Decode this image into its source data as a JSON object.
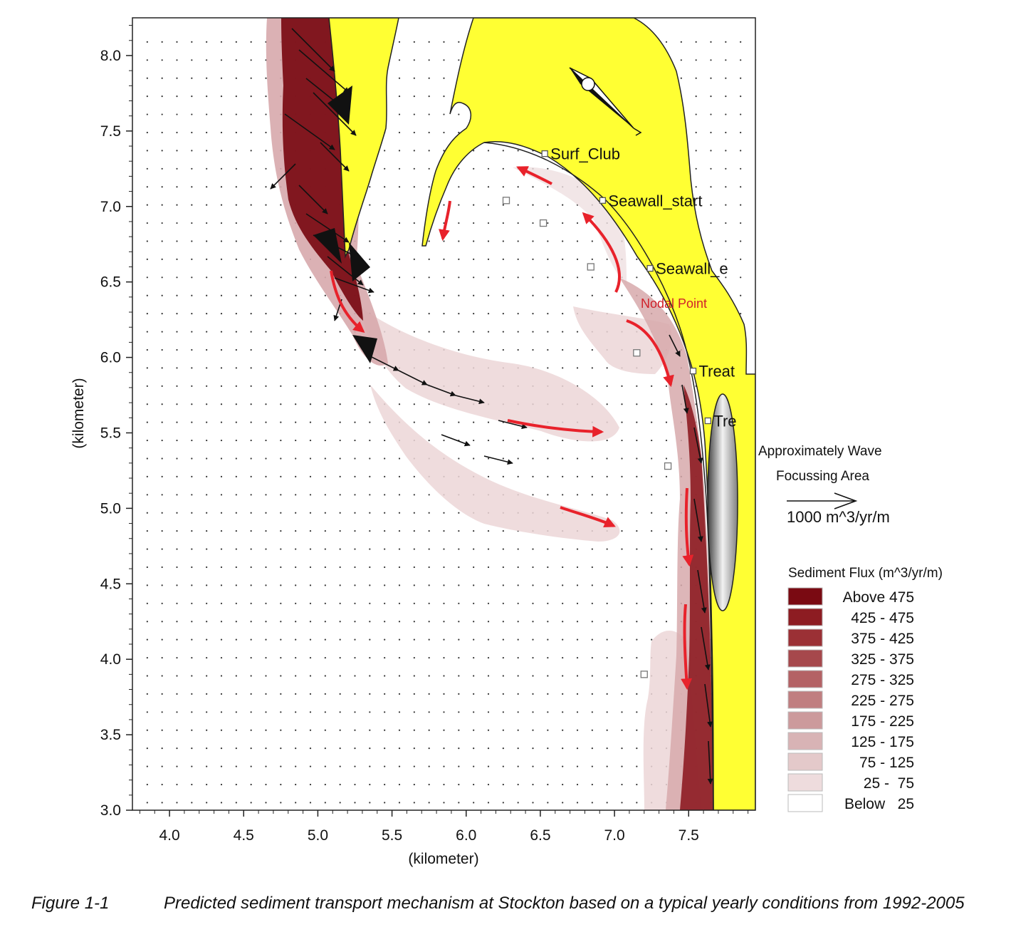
{
  "figure": {
    "axes": {
      "xlabel": "(kilometer)",
      "ylabel": "(kilometer)",
      "xlim": [
        3.75,
        7.95
      ],
      "ylim": [
        3.0,
        8.25
      ],
      "xticks": [
        "4.0",
        "4.5",
        "5.0",
        "5.5",
        "6.0",
        "6.5",
        "7.0",
        "7.5"
      ],
      "xtick_values": [
        4.0,
        4.5,
        5.0,
        5.5,
        6.0,
        6.5,
        7.0,
        7.5
      ],
      "yticks": [
        "3.0",
        "3.5",
        "4.0",
        "4.5",
        "5.0",
        "5.5",
        "6.0",
        "6.5",
        "7.0",
        "7.5",
        "8.0"
      ],
      "ytick_values": [
        3.0,
        3.5,
        4.0,
        4.5,
        5.0,
        5.5,
        6.0,
        6.5,
        7.0,
        7.5,
        8.0
      ]
    },
    "land_color": "#ffff33",
    "stations": [
      {
        "label": "Surf_Club",
        "x": 6.53,
        "y": 7.35
      },
      {
        "label": "Seawall_start",
        "x": 6.92,
        "y": 7.04
      },
      {
        "label": "Seawall_e",
        "x": 7.24,
        "y": 6.59
      },
      {
        "label": "Treat",
        "x": 7.53,
        "y": 5.91
      },
      {
        "label": "Tre",
        "x": 7.63,
        "y": 5.58
      }
    ],
    "unlabeled_points": [
      {
        "x": 6.27,
        "y": 7.04
      },
      {
        "x": 6.52,
        "y": 6.89
      },
      {
        "x": 6.84,
        "y": 6.6
      },
      {
        "x": 7.15,
        "y": 6.03
      },
      {
        "x": 7.36,
        "y": 5.28
      },
      {
        "x": 7.2,
        "y": 3.9
      }
    ],
    "annotation_nodal": "Nodal Point",
    "wave_focus": {
      "line1": "Approximately Wave",
      "line2": "Focussing Area"
    },
    "scale_vector_label": "1000 m^3/yr/m",
    "legend": {
      "title": "Sediment Flux (m^3/yr/m)",
      "entries": [
        {
          "label": "Above 475",
          "color": "#7a0a12"
        },
        {
          "label": "425 - 475",
          "color": "#8d1c22"
        },
        {
          "label": "375 - 425",
          "color": "#9b3035"
        },
        {
          "label": "325 - 375",
          "color": "#a6484c"
        },
        {
          "label": "275 - 325",
          "color": "#b46265"
        },
        {
          "label": "225 - 275",
          "color": "#c07e80"
        },
        {
          "label": "175 - 225",
          "color": "#cc9a9c"
        },
        {
          "label": "125 - 175",
          "color": "#d8b3b5"
        },
        {
          "label": "75 - 125",
          "color": "#e4c9ca"
        },
        {
          "label": "25 -  75",
          "color": "#eedcdd"
        },
        {
          "label": "Below   25",
          "color": "#ffffff"
        }
      ]
    }
  },
  "caption": {
    "label": "Figure 1-1",
    "text": "Predicted sediment transport mechanism at Stockton based on a typical yearly conditions from 1992-2005"
  }
}
